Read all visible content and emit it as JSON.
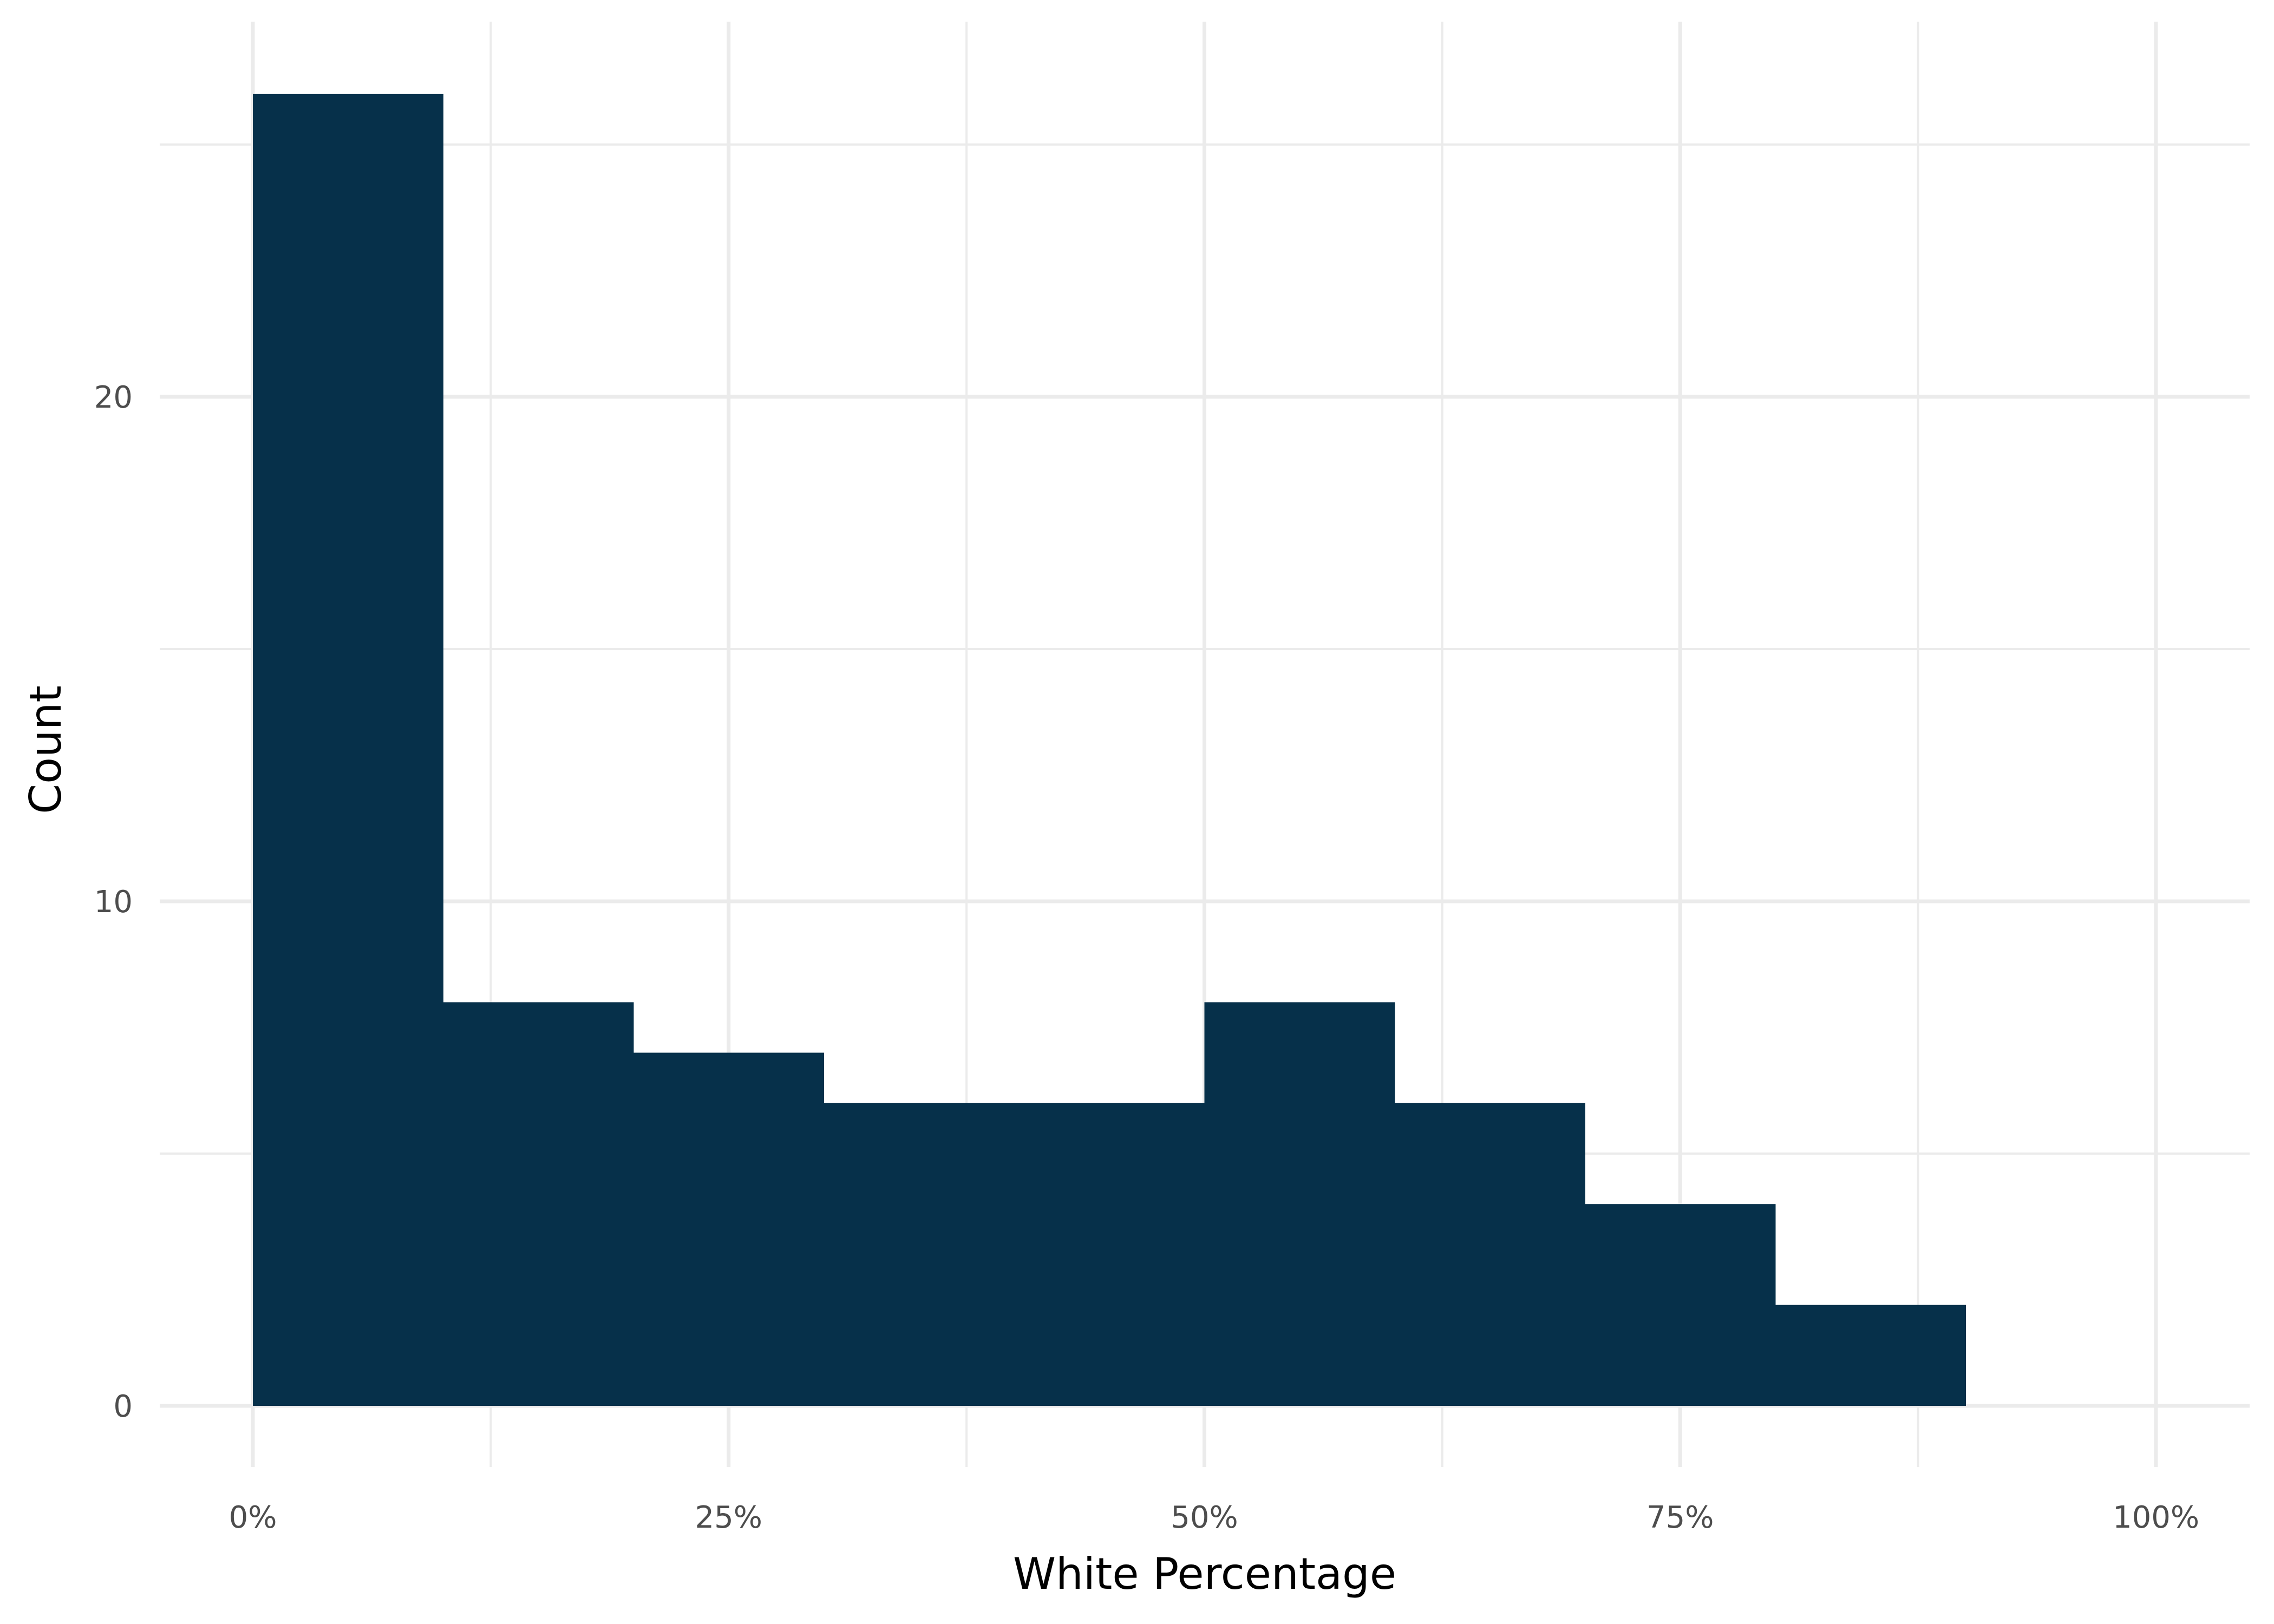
{
  "chart_data": {
    "type": "bar",
    "subtype": "histogram",
    "bins": [
      {
        "x0": 0,
        "x1": 0.1,
        "count": 26
      },
      {
        "x0": 0.1,
        "x1": 0.2,
        "count": 8
      },
      {
        "x0": 0.2,
        "x1": 0.3,
        "count": 7
      },
      {
        "x0": 0.3,
        "x1": 0.4,
        "count": 6
      },
      {
        "x0": 0.4,
        "x1": 0.5,
        "count": 6
      },
      {
        "x0": 0.5,
        "x1": 0.6,
        "count": 8
      },
      {
        "x0": 0.6,
        "x1": 0.7,
        "count": 6
      },
      {
        "x0": 0.7,
        "x1": 0.8,
        "count": 4
      },
      {
        "x0": 0.8,
        "x1": 0.9,
        "count": 2
      }
    ],
    "xlabel": "White Percentage",
    "ylabel": "Count",
    "xlim": [
      0,
      1
    ],
    "ylim": [
      0,
      26
    ],
    "x_ticks": [
      0,
      0.25,
      0.5,
      0.75,
      1
    ],
    "x_tick_labels": [
      "0%",
      "25%",
      "50%",
      "75%",
      "100%"
    ],
    "y_ticks": [
      0,
      10,
      20
    ],
    "y_tick_labels": [
      "0",
      "10",
      "20"
    ],
    "grid": true,
    "legend": "none",
    "bar_color": "#06304a",
    "grid_color": "#ebebeb"
  }
}
